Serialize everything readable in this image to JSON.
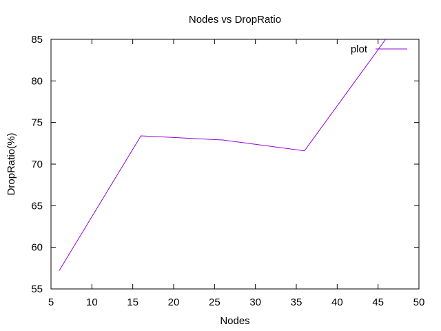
{
  "chart_data": {
    "type": "line",
    "title": "Nodes vs DropRatio",
    "xlabel": "Nodes",
    "ylabel": "DropRatio(%)",
    "xlim": [
      5,
      50
    ],
    "ylim": [
      55,
      85
    ],
    "xticks": [
      5,
      10,
      15,
      20,
      25,
      30,
      35,
      40,
      45,
      50
    ],
    "yticks": [
      55,
      60,
      65,
      70,
      75,
      80,
      85
    ],
    "grid": false,
    "legend_position": "top-right",
    "series": [
      {
        "name": "plot",
        "color": "#9400d3",
        "x": [
          6,
          16,
          26,
          36,
          46
        ],
        "y": [
          57.2,
          73.4,
          72.9,
          71.6,
          85.1
        ]
      }
    ]
  }
}
